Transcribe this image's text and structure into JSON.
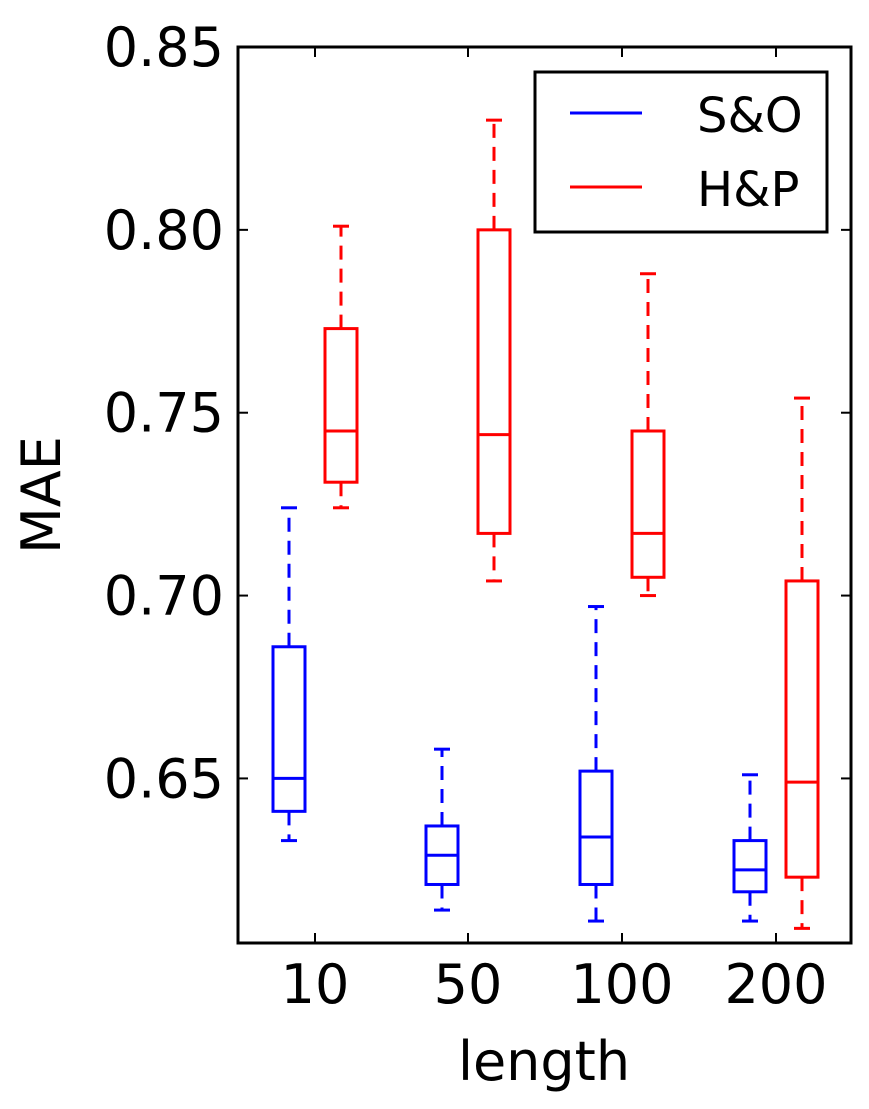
{
  "chart_data": {
    "type": "box",
    "title": "",
    "xlabel": "length",
    "ylabel": "MAE",
    "ylim": [
      0.605,
      0.85
    ],
    "yticks": [
      0.65,
      0.7,
      0.75,
      0.8,
      0.85
    ],
    "ytick_labels": [
      "0.65",
      "0.70",
      "0.75",
      "0.80",
      "0.85"
    ],
    "categories": [
      "10",
      "50",
      "100",
      "200"
    ],
    "legend": {
      "position": "top-right",
      "entries": [
        {
          "name": "S&O",
          "color": "#0000ff"
        },
        {
          "name": "H&P",
          "color": "#ff0000"
        }
      ]
    },
    "series": [
      {
        "name": "S&O",
        "color": "#0000ff",
        "boxes": [
          {
            "category": "10",
            "whisker_low": 0.633,
            "q1": 0.641,
            "median": 0.65,
            "q3": 0.686,
            "whisker_high": 0.724
          },
          {
            "category": "50",
            "whisker_low": 0.614,
            "q1": 0.621,
            "median": 0.629,
            "q3": 0.637,
            "whisker_high": 0.658
          },
          {
            "category": "100",
            "whisker_low": 0.611,
            "q1": 0.621,
            "median": 0.634,
            "q3": 0.652,
            "whisker_high": 0.697
          },
          {
            "category": "200",
            "whisker_low": 0.611,
            "q1": 0.619,
            "median": 0.625,
            "q3": 0.633,
            "whisker_high": 0.651
          }
        ]
      },
      {
        "name": "H&P",
        "color": "#ff0000",
        "boxes": [
          {
            "category": "10",
            "whisker_low": 0.724,
            "q1": 0.731,
            "median": 0.745,
            "q3": 0.773,
            "whisker_high": 0.801
          },
          {
            "category": "50",
            "whisker_low": 0.704,
            "q1": 0.717,
            "median": 0.744,
            "q3": 0.8,
            "whisker_high": 0.83
          },
          {
            "category": "100",
            "whisker_low": 0.7,
            "q1": 0.705,
            "median": 0.717,
            "q3": 0.745,
            "whisker_high": 0.788
          },
          {
            "category": "200",
            "whisker_low": 0.609,
            "q1": 0.623,
            "median": 0.649,
            "q3": 0.704,
            "whisker_high": 0.754
          }
        ]
      }
    ]
  }
}
